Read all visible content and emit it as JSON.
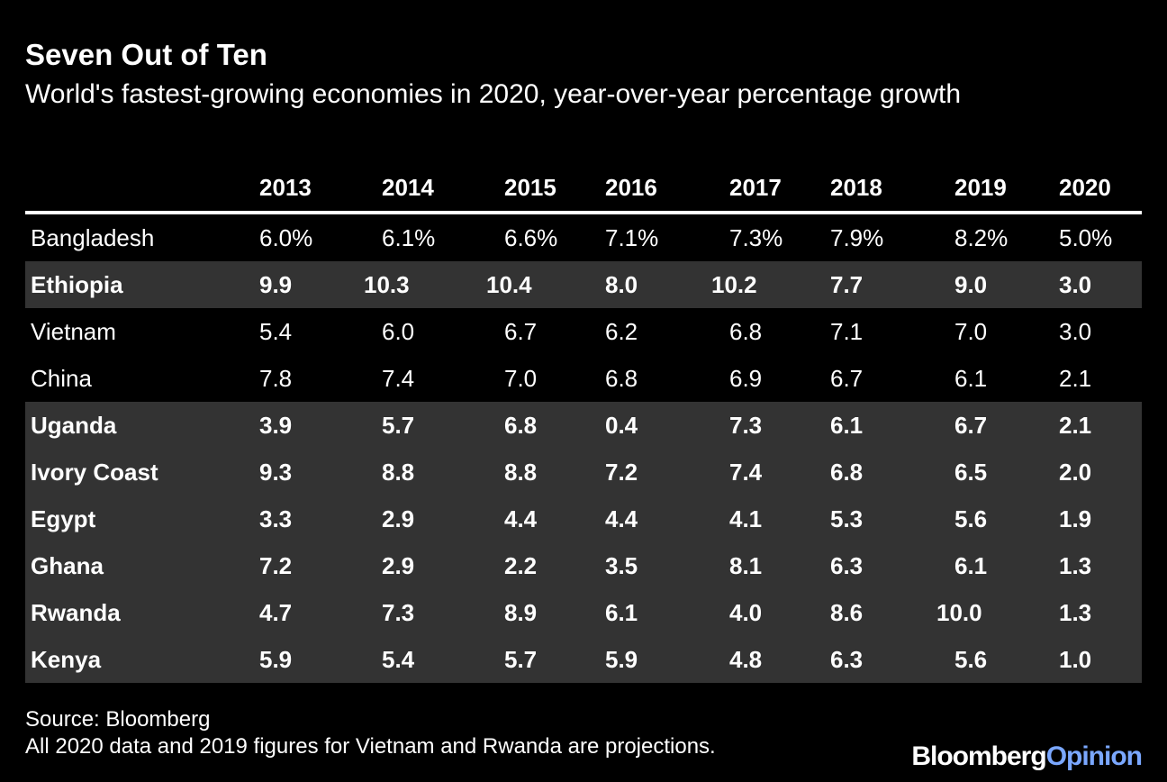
{
  "title": "Seven Out of Ten",
  "subtitle": "World's fastest-growing economies in 2020, year-over-year percentage growth",
  "chart_data": {
    "type": "table",
    "title": "Seven Out of Ten",
    "subtitle": "World's fastest-growing economies in 2020, year-over-year percentage growth",
    "columns": [
      "2013",
      "2014",
      "2015",
      "2016",
      "2017",
      "2018",
      "2019",
      "2020"
    ],
    "rows": [
      {
        "country": "Bangladesh",
        "values": [
          "6.0%",
          "6.1%",
          "6.6%",
          "7.1%",
          "7.3%",
          "7.9%",
          "8.2%",
          "5.0%"
        ],
        "highlighted": false
      },
      {
        "country": "Ethiopia",
        "values": [
          "9.9",
          "10.3",
          "10.4",
          "8.0",
          "10.2",
          "7.7",
          "9.0",
          "3.0"
        ],
        "highlighted": true
      },
      {
        "country": "Vietnam",
        "values": [
          "5.4",
          "6.0",
          "6.7",
          "6.2",
          "6.8",
          "7.1",
          "7.0",
          "3.0"
        ],
        "highlighted": false
      },
      {
        "country": "China",
        "values": [
          "7.8",
          "7.4",
          "7.0",
          "6.8",
          "6.9",
          "6.7",
          "6.1",
          "2.1"
        ],
        "highlighted": false
      },
      {
        "country": "Uganda",
        "values": [
          "3.9",
          "5.7",
          "6.8",
          "0.4",
          "7.3",
          "6.1",
          "6.7",
          "2.1"
        ],
        "highlighted": true
      },
      {
        "country": "Ivory Coast",
        "values": [
          "9.3",
          "8.8",
          "8.8",
          "7.2",
          "7.4",
          "6.8",
          "6.5",
          "2.0"
        ],
        "highlighted": true
      },
      {
        "country": "Egypt",
        "values": [
          "3.3",
          "2.9",
          "4.4",
          "4.4",
          "4.1",
          "5.3",
          "5.6",
          "1.9"
        ],
        "highlighted": true
      },
      {
        "country": "Ghana",
        "values": [
          "7.2",
          "2.9",
          "2.2",
          "3.5",
          "8.1",
          "6.3",
          "6.1",
          "1.3"
        ],
        "highlighted": true
      },
      {
        "country": "Rwanda",
        "values": [
          "4.7",
          "7.3",
          "8.9",
          "6.1",
          "4.0",
          "8.6",
          "10.0",
          "1.3"
        ],
        "highlighted": true
      },
      {
        "country": "Kenya",
        "values": [
          "5.9",
          "5.4",
          "5.7",
          "5.9",
          "4.8",
          "6.3",
          "5.6",
          "1.0"
        ],
        "highlighted": true
      }
    ]
  },
  "footer": {
    "source": "Source: Bloomberg",
    "note": "All 2020 data and 2019 figures for Vietnam and Rwanda are projections."
  },
  "brand": {
    "name": "Bloomberg",
    "section": "Opinion"
  },
  "colors": {
    "background": "#000000",
    "text": "#ffffff",
    "highlight_row": "#333333",
    "brand_accent": "#7aa7ff"
  }
}
